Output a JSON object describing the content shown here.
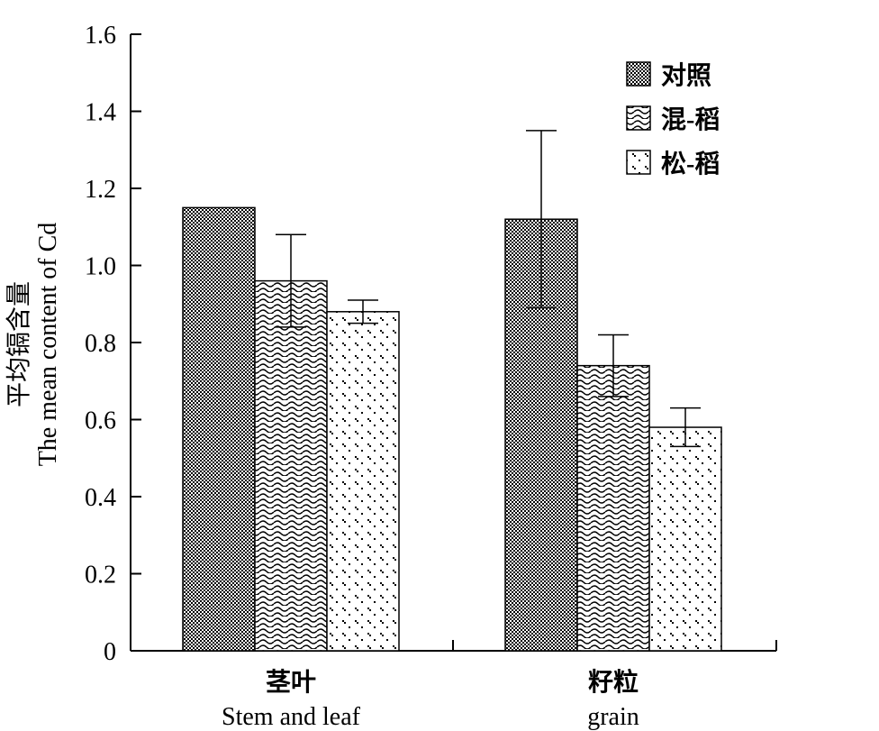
{
  "chart_data": {
    "type": "bar",
    "ylabel_cn": "平均镉含量",
    "ylabel_en": "The mean content of Cd",
    "ylim": [
      0,
      1.6
    ],
    "yticks": [
      "0",
      "0.2",
      "0.4",
      "0.6",
      "0.8",
      "1.0",
      "1.2",
      "1.4",
      "1.6"
    ],
    "categories": [
      {
        "cn": "茎叶",
        "en": "Stem and leaf"
      },
      {
        "cn": "籽粒",
        "en": "grain"
      }
    ],
    "series": [
      {
        "name": "对照",
        "pattern": "checker",
        "values": [
          1.15,
          1.12
        ],
        "errors": [
          null,
          0.23
        ]
      },
      {
        "name": "混-稻",
        "pattern": "wave",
        "values": [
          0.96,
          0.74
        ],
        "errors": [
          0.12,
          0.08
        ]
      },
      {
        "name": "松-稻",
        "pattern": "dots",
        "values": [
          0.88,
          0.58
        ],
        "errors": [
          0.03,
          0.05
        ]
      }
    ],
    "legend_position": "top-right",
    "grid": false
  }
}
